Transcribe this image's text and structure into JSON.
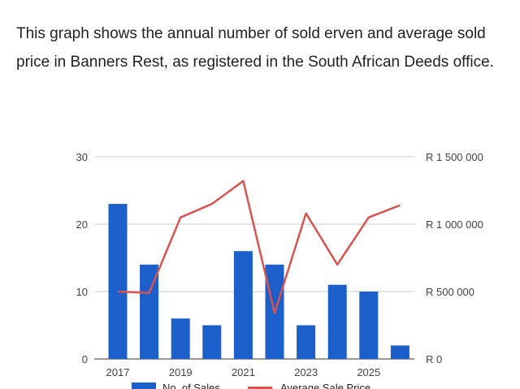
{
  "intro_text": "This graph shows the annual number of sold erven and average sold price in Banners Rest, as registered in the South African Deeds office.",
  "chart_data": {
    "type": "bar",
    "title": "",
    "x": [
      2017,
      2018,
      2019,
      2020,
      2021,
      2022,
      2023,
      2024,
      2025,
      2026
    ],
    "x_tick_labels": [
      "2017",
      "2019",
      "2021",
      "2023",
      "2025"
    ],
    "x_tick_values": [
      2017,
      2019,
      2021,
      2023,
      2025
    ],
    "y_left": {
      "ylim": [
        0,
        30
      ],
      "ticks": [
        0,
        10,
        20,
        30
      ],
      "tick_labels": [
        "0",
        "10",
        "20",
        "30"
      ]
    },
    "y_right": {
      "ylim": [
        0,
        1500000
      ],
      "ticks": [
        0,
        500000,
        1000000,
        1500000
      ],
      "tick_labels": [
        "R 0",
        "R 500 000",
        "R 1 000 000",
        "R 1 500 000"
      ]
    },
    "grid": true,
    "legend_position": "bottom",
    "series": [
      {
        "name": "No. of Sales",
        "type": "bar",
        "axis": "left",
        "color": "#1c5fcb",
        "values": [
          23,
          14,
          6,
          5,
          16,
          14,
          5,
          11,
          10,
          2
        ]
      },
      {
        "name": "Average Sale Price",
        "type": "line",
        "axis": "right",
        "color": "#d9534f",
        "values": [
          500000,
          490000,
          1050000,
          1150000,
          1320000,
          340000,
          1080000,
          700000,
          1050000,
          1140000
        ]
      }
    ]
  }
}
